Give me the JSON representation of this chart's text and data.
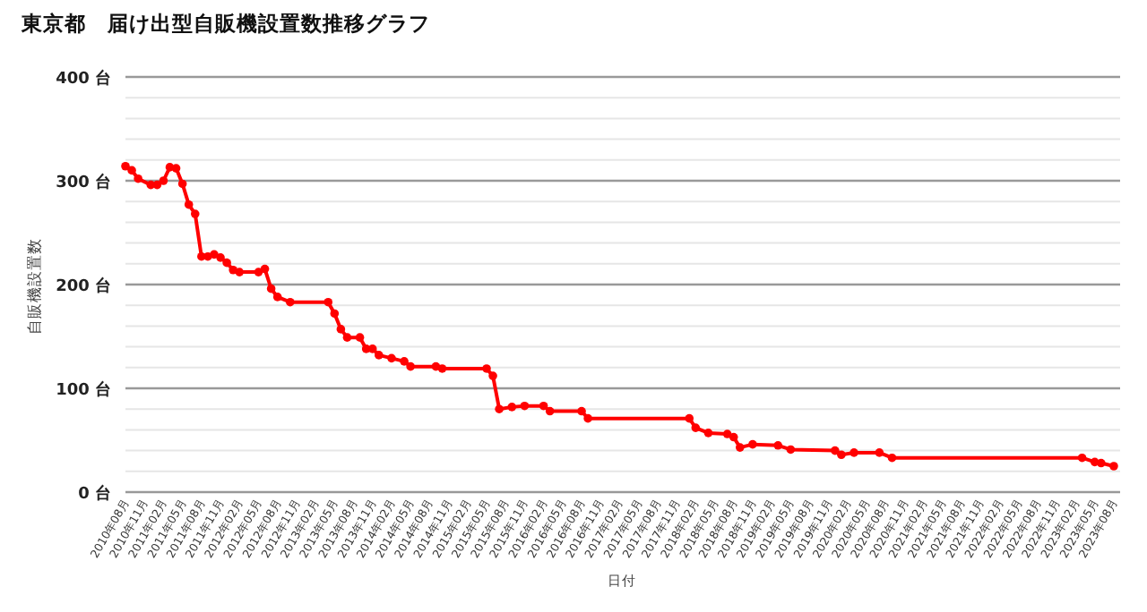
{
  "chart_data": {
    "type": "line",
    "title": "東京都　届け出型自販機設置数推移グラフ",
    "xlabel": "日付",
    "ylabel": "自販機設置数",
    "x": [
      "2010-08",
      "2010-09",
      "2010-10",
      "2010-12",
      "2011-01",
      "2011-02",
      "2011-03",
      "2011-04",
      "2011-05",
      "2011-06",
      "2011-07",
      "2011-08",
      "2011-09",
      "2011-10",
      "2011-11",
      "2011-12",
      "2012-01",
      "2012-02",
      "2012-05",
      "2012-06",
      "2012-07",
      "2012-08",
      "2012-10",
      "2013-04",
      "2013-05",
      "2013-06",
      "2013-07",
      "2013-09",
      "2013-10",
      "2013-11",
      "2013-12",
      "2014-02",
      "2014-04",
      "2014-05",
      "2014-09",
      "2014-10",
      "2015-05",
      "2015-06",
      "2015-07",
      "2015-09",
      "2015-11",
      "2016-02",
      "2016-03",
      "2016-08",
      "2016-09",
      "2018-01",
      "2018-02",
      "2018-04",
      "2018-07",
      "2018-08",
      "2018-09",
      "2018-11",
      "2019-03",
      "2019-05",
      "2019-12",
      "2020-01",
      "2020-03",
      "2020-07",
      "2020-09",
      "2023-03",
      "2023-05",
      "2023-06",
      "2023-08"
    ],
    "series": [
      {
        "color": "#ff0000",
        "values": [
          314,
          310,
          302,
          296,
          296,
          300,
          313,
          312,
          297,
          277,
          268,
          227,
          227,
          229,
          226,
          221,
          214,
          212,
          212,
          215,
          196,
          188,
          183,
          183,
          172,
          157,
          149,
          149,
          138,
          138,
          132,
          129,
          126,
          121,
          121,
          119,
          119,
          112,
          80,
          82,
          83,
          83,
          78,
          78,
          71,
          71,
          62,
          57,
          56,
          53,
          43,
          46,
          45,
          41,
          40,
          36,
          38,
          38,
          33,
          33,
          29,
          28,
          25
        ]
      }
    ],
    "xlim": [
      "2010-08",
      "2023-09"
    ],
    "xticks": [
      {
        "value": "2010-08",
        "label": "2010年08月"
      },
      {
        "value": "2010-11",
        "label": "2010年11月"
      },
      {
        "value": "2011-02",
        "label": "2011年02月"
      },
      {
        "value": "2011-05",
        "label": "2011年05月"
      },
      {
        "value": "2011-08",
        "label": "2011年08月"
      },
      {
        "value": "2011-11",
        "label": "2011年11月"
      },
      {
        "value": "2012-02",
        "label": "2012年02月"
      },
      {
        "value": "2012-05",
        "label": "2012年05月"
      },
      {
        "value": "2012-08",
        "label": "2012年08月"
      },
      {
        "value": "2012-11",
        "label": "2012年11月"
      },
      {
        "value": "2013-02",
        "label": "2013年02月"
      },
      {
        "value": "2013-05",
        "label": "2013年05月"
      },
      {
        "value": "2013-08",
        "label": "2013年08月"
      },
      {
        "value": "2013-11",
        "label": "2013年11月"
      },
      {
        "value": "2014-02",
        "label": "2014年02月"
      },
      {
        "value": "2014-05",
        "label": "2014年05月"
      },
      {
        "value": "2014-08",
        "label": "2014年08月"
      },
      {
        "value": "2014-11",
        "label": "2014年11月"
      },
      {
        "value": "2015-02",
        "label": "2015年02月"
      },
      {
        "value": "2015-05",
        "label": "2015年05月"
      },
      {
        "value": "2015-08",
        "label": "2015年08月"
      },
      {
        "value": "2015-11",
        "label": "2015年11月"
      },
      {
        "value": "2016-02",
        "label": "2016年02月"
      },
      {
        "value": "2016-05",
        "label": "2016年05月"
      },
      {
        "value": "2016-08",
        "label": "2016年08月"
      },
      {
        "value": "2016-11",
        "label": "2016年11月"
      },
      {
        "value": "2017-02",
        "label": "2017年02月"
      },
      {
        "value": "2017-05",
        "label": "2017年05月"
      },
      {
        "value": "2017-08",
        "label": "2017年08月"
      },
      {
        "value": "2017-11",
        "label": "2017年11月"
      },
      {
        "value": "2018-02",
        "label": "2018年02月"
      },
      {
        "value": "2018-05",
        "label": "2018年05月"
      },
      {
        "value": "2018-08",
        "label": "2018年08月"
      },
      {
        "value": "2018-11",
        "label": "2018年11月"
      },
      {
        "value": "2019-02",
        "label": "2019年02月"
      },
      {
        "value": "2019-05",
        "label": "2019年05月"
      },
      {
        "value": "2019-08",
        "label": "2019年08月"
      },
      {
        "value": "2019-11",
        "label": "2019年11月"
      },
      {
        "value": "2020-02",
        "label": "2020年02月"
      },
      {
        "value": "2020-05",
        "label": "2020年05月"
      },
      {
        "value": "2020-08",
        "label": "2020年08月"
      },
      {
        "value": "2020-11",
        "label": "2020年11月"
      },
      {
        "value": "2021-02",
        "label": "2021年02月"
      },
      {
        "value": "2021-05",
        "label": "2021年05月"
      },
      {
        "value": "2021-08",
        "label": "2021年08月"
      },
      {
        "value": "2021-11",
        "label": "2021年11月"
      },
      {
        "value": "2022-02",
        "label": "2022年02月"
      },
      {
        "value": "2022-05",
        "label": "2022年05月"
      },
      {
        "value": "2022-08",
        "label": "2022年08月"
      },
      {
        "value": "2022-11",
        "label": "2022年11月"
      },
      {
        "value": "2023-02",
        "label": "2023年02月"
      },
      {
        "value": "2023-05",
        "label": "2023年05月"
      },
      {
        "value": "2023-08",
        "label": "2023年08月"
      }
    ],
    "ylim": [
      0,
      400
    ],
    "yticks": [
      {
        "value": 0,
        "label": "0 台"
      },
      {
        "value": 20,
        "label": null
      },
      {
        "value": 40,
        "label": null
      },
      {
        "value": 60,
        "label": null
      },
      {
        "value": 80,
        "label": null
      },
      {
        "value": 100,
        "label": "100 台"
      },
      {
        "value": 120,
        "label": null
      },
      {
        "value": 140,
        "label": null
      },
      {
        "value": 160,
        "label": null
      },
      {
        "value": 180,
        "label": null
      },
      {
        "value": 200,
        "label": "200 台"
      },
      {
        "value": 220,
        "label": null
      },
      {
        "value": 240,
        "label": null
      },
      {
        "value": 260,
        "label": null
      },
      {
        "value": 280,
        "label": null
      },
      {
        "value": 300,
        "label": "300 台"
      },
      {
        "value": 320,
        "label": null
      },
      {
        "value": 340,
        "label": null
      },
      {
        "value": 360,
        "label": null
      },
      {
        "value": 380,
        "label": null
      },
      {
        "value": 400,
        "label": "400 台"
      }
    ],
    "grid": "y",
    "marker": "circle",
    "line_style": "solid"
  }
}
